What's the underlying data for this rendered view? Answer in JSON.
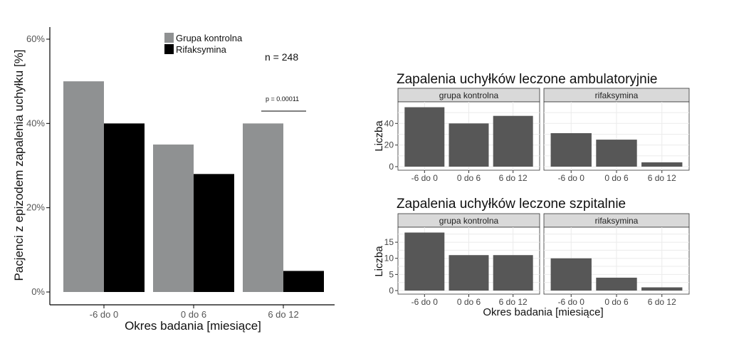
{
  "chart_data": [
    {
      "type": "bar",
      "title": "",
      "xlabel": "Okres badania [miesiące]",
      "ylabel": "Pacjenci z epizodem zapalenia uchyłku [%]",
      "categories": [
        "-6 do 0",
        "0 do 6",
        "6 do 12"
      ],
      "series": [
        {
          "name": "Grupa kontrolna",
          "values": [
            50,
            35,
            40
          ],
          "color": "#8f9192"
        },
        {
          "name": "Rifaksymina",
          "values": [
            40,
            28,
            5
          ],
          "color": "#000000"
        }
      ],
      "ylim": [
        0,
        60
      ],
      "yticks": [
        "0%",
        "20%",
        "40%",
        "60%"
      ],
      "legend": "top",
      "annotations": {
        "n": "n = 248",
        "p_value": "p = 0.00011"
      }
    },
    {
      "type": "bar",
      "title": "Zapalenia uchyłków leczone ambulatoryjnie",
      "xlabel": "",
      "ylabel": "Liczba",
      "categories": [
        "-6 do 0",
        "0 do 6",
        "6 do 12"
      ],
      "facets": [
        {
          "name": "grupa kontrolna",
          "values": [
            55,
            40,
            47
          ]
        },
        {
          "name": "rifaksymina",
          "values": [
            31,
            25,
            4
          ]
        }
      ],
      "ylim": [
        0,
        58
      ],
      "yticks": [
        "0",
        "20",
        "40"
      ],
      "grid": true,
      "color": "#575757"
    },
    {
      "type": "bar",
      "title": "Zapalenia uchyłków leczone szpitalnie",
      "xlabel": "Okres badania [miesiące]",
      "ylabel": "Liczba",
      "categories": [
        "-6 do 0",
        "0 do 6",
        "6 do 12"
      ],
      "facets": [
        {
          "name": "grupa kontrolna",
          "values": [
            18,
            11,
            11
          ]
        },
        {
          "name": "rifaksymina",
          "values": [
            10,
            4,
            1
          ]
        }
      ],
      "ylim": [
        0,
        19
      ],
      "yticks": [
        "0",
        "5",
        "10",
        "15"
      ],
      "grid": true,
      "color": "#575757"
    }
  ]
}
